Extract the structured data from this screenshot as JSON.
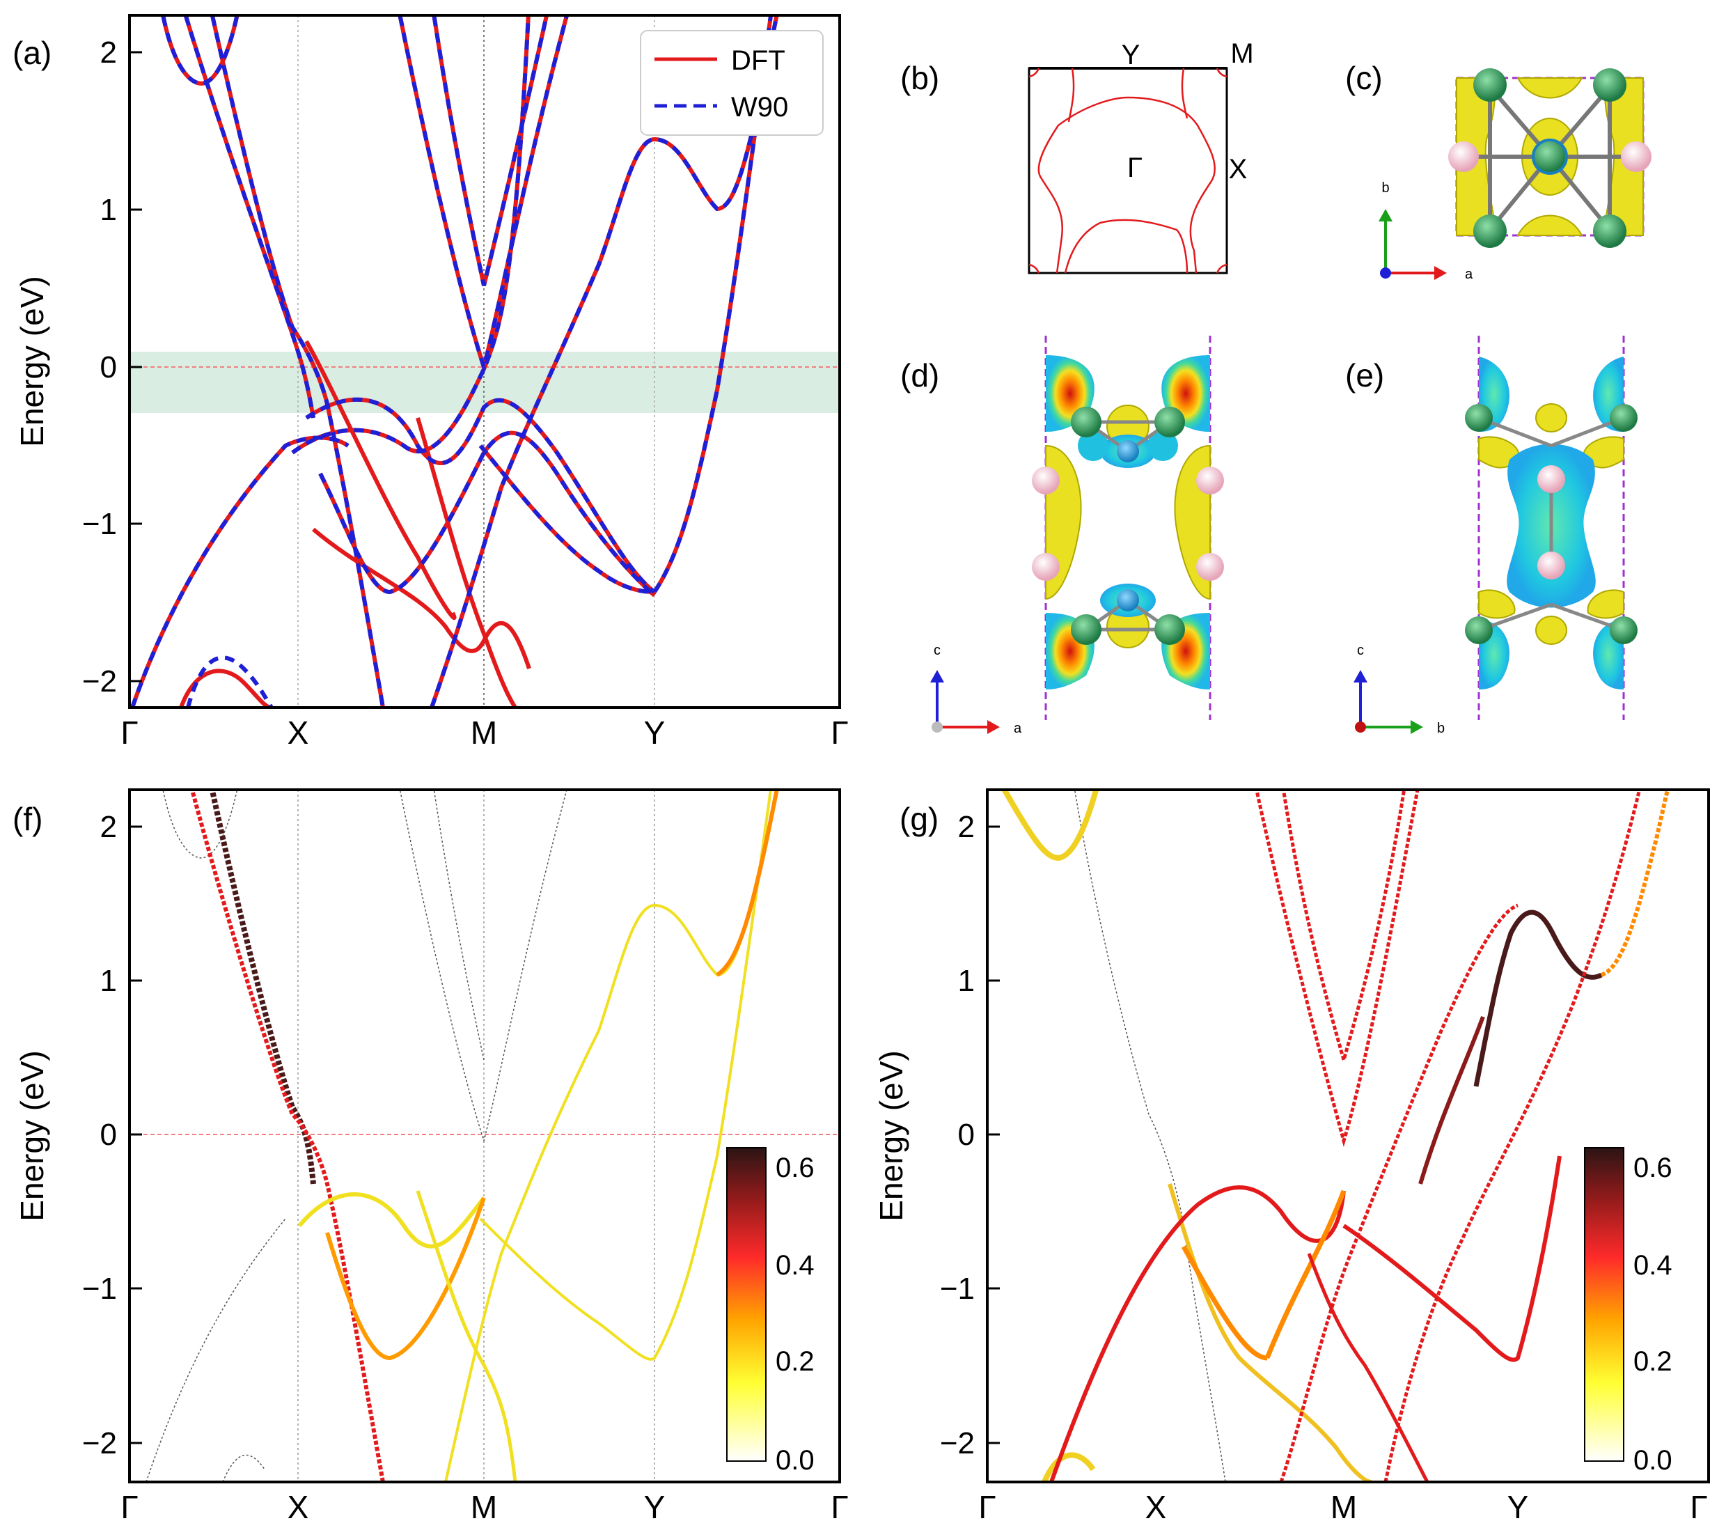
{
  "panels": {
    "a": "(a)",
    "b": "(b)",
    "c": "(c)",
    "d": "(d)",
    "e": "(e)",
    "f": "(f)",
    "g": "(g)"
  },
  "axis": {
    "ylabel": "Energy (eV)",
    "yticks": [
      "2",
      "1",
      "0",
      "−1",
      "−2"
    ],
    "kpoints": [
      "Γ",
      "X",
      "M",
      "Y",
      "Γ"
    ]
  },
  "legend": {
    "dft": "DFT",
    "w90": "W90"
  },
  "colorbar": {
    "ticks": [
      "0.6",
      "0.4",
      "0.2",
      "0.0"
    ]
  },
  "bz": {
    "Y": "Y",
    "M": "M",
    "X": "X",
    "G": "Γ"
  },
  "axes3d": {
    "c": {
      "v": "b",
      "h": "a"
    },
    "d": {
      "v": "c",
      "h": "a"
    },
    "e": {
      "v": "c",
      "h": "b"
    }
  },
  "colors": {
    "dft": "#e31a1c",
    "w90": "#1f1fd6",
    "window": "#d9ede2",
    "ef": "#f08080",
    "iso_yellow": "#e8e020",
    "iso_cyan": "#20b8d8",
    "atom_green": "#2e9e5e",
    "atom_pink": "#f4c2cf"
  },
  "chart_data": [
    {
      "id": "a",
      "type": "line",
      "title": "",
      "xlabel": "",
      "ylabel": "Energy (eV)",
      "xticks": [
        "Γ",
        "X",
        "M",
        "Y",
        "Γ"
      ],
      "ylim": [
        -2.2,
        2.2
      ],
      "energy_window": [
        -0.3,
        0.3
      ],
      "series": [
        {
          "name": "DFT",
          "style": "solid red"
        },
        {
          "name": "W90",
          "style": "dashed blue"
        }
      ],
      "band_features": [
        {
          "kpoint": "M",
          "energy": 0.5
        },
        {
          "kpoint": "M",
          "energy": -0.2
        },
        {
          "kpoint": "M",
          "energy": -0.3
        },
        {
          "kpoint": "M",
          "energy": -0.62
        },
        {
          "kpoint": "M",
          "energy": -1.8
        },
        {
          "kpoint": "Y",
          "energy": 1.45
        },
        {
          "kpoint": "Y",
          "energy": -1.47
        },
        {
          "kpoint": "X",
          "energy": -0.6
        },
        {
          "kpoint": "X",
          "energy": -0.8
        }
      ]
    },
    {
      "id": "f",
      "type": "scatter",
      "xlabel": "",
      "ylabel": "Energy (eV)",
      "xticks": [
        "Γ",
        "X",
        "M",
        "Y",
        "Γ"
      ],
      "ylim": [
        -2.2,
        2.2
      ],
      "colorbar_range": [
        0.0,
        0.65
      ]
    },
    {
      "id": "g",
      "type": "scatter",
      "xlabel": "",
      "ylabel": "Energy (eV)",
      "xticks": [
        "Γ",
        "X",
        "M",
        "Y",
        "Γ"
      ],
      "ylim": [
        -2.2,
        2.2
      ],
      "colorbar_range": [
        0.0,
        0.65
      ]
    }
  ]
}
